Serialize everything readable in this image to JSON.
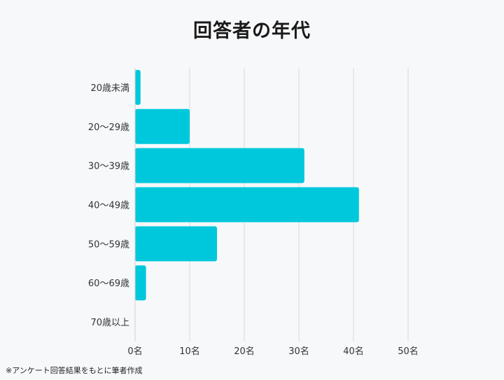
{
  "chart_data": {
    "type": "bar",
    "orientation": "horizontal",
    "title": "回答者の年代",
    "categories": [
      "20歳未満",
      "20〜29歳",
      "30〜39歳",
      "40〜49歳",
      "50〜59歳",
      "60〜69歳",
      "70歳以上"
    ],
    "values": [
      1,
      10,
      31,
      41,
      15,
      2,
      0
    ],
    "xlim": [
      0,
      50
    ],
    "x_ticks": [
      0,
      10,
      20,
      30,
      40,
      50
    ],
    "x_tick_labels": [
      "0名",
      "10名",
      "20名",
      "30名",
      "40名",
      "50名"
    ],
    "grid": true,
    "bar_color": "#00c8dc",
    "footnote": "※アンケート回答結果をもとに筆者作成"
  }
}
